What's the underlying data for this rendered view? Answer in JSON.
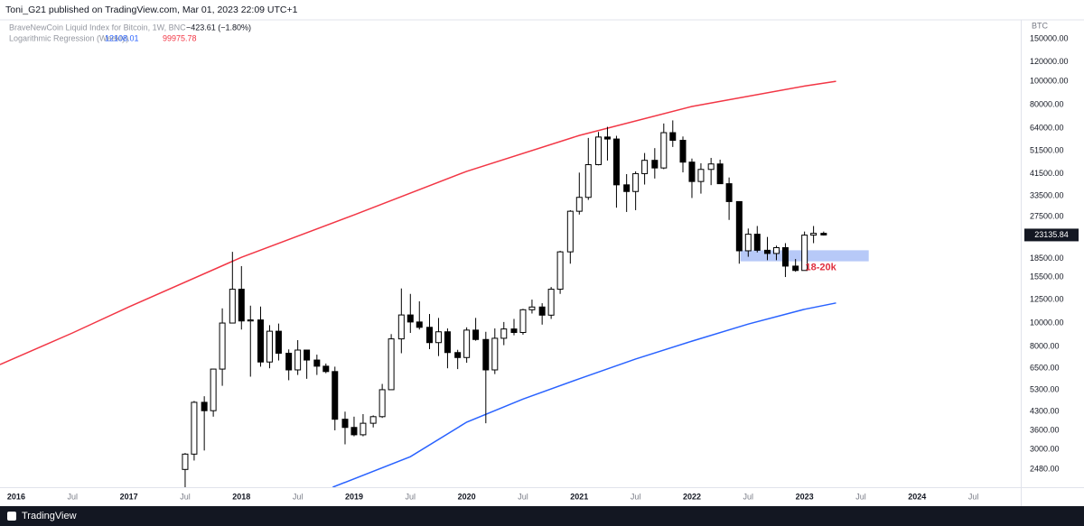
{
  "header": {
    "text": "Toni_G21 published on TradingView.com, Mar 01, 2023 22:09 UTC+1"
  },
  "footer": {
    "brand": "TradingView"
  },
  "chart_data": {
    "type": "candlestick",
    "log_scale": true,
    "grid": false,
    "ylabel": "BTC",
    "xlim": [
      2015.856,
      2024.92
    ],
    "ylim": [
      2094,
      179500
    ],
    "xticks": [
      2016,
      {
        "value": 2016.5,
        "label": "Jul"
      },
      2017,
      {
        "value": 2017.5,
        "label": "Jul"
      },
      2018,
      {
        "value": 2018.5,
        "label": "Jul"
      },
      2019,
      {
        "value": 2019.5,
        "label": "Jul"
      },
      2020,
      {
        "value": 2020.5,
        "label": "Jul"
      },
      2021,
      {
        "value": 2021.5,
        "label": "Jul"
      },
      2022,
      {
        "value": 2022.5,
        "label": "Jul"
      },
      2023,
      {
        "value": 2023.5,
        "label": "Jul"
      },
      2024,
      {
        "value": 2024.5,
        "label": "Jul"
      }
    ],
    "yticks": [
      {
        "value": 150000,
        "label": "150000.00"
      },
      {
        "value": 120000,
        "label": "120000.00"
      },
      {
        "value": 100000,
        "label": "100000.00"
      },
      {
        "value": 80000,
        "label": "80000.00"
      },
      {
        "value": 64000,
        "label": "64000.00"
      },
      {
        "value": 51500,
        "label": "51500.00"
      },
      {
        "value": 41500,
        "label": "41500.00"
      },
      {
        "value": 33500,
        "label": "33500.00"
      },
      {
        "value": 27500,
        "label": "27500.00"
      },
      {
        "value": 18500,
        "label": "18500.00"
      },
      {
        "value": 15500,
        "label": "15500.00"
      },
      {
        "value": 12500,
        "label": "12500.00"
      },
      {
        "value": 10000,
        "label": "10000.00"
      },
      {
        "value": 8000,
        "label": "8000.00"
      },
      {
        "value": 6500,
        "label": "6500.00"
      },
      {
        "value": 5300,
        "label": "5300.00"
      },
      {
        "value": 4300,
        "label": "4300.00"
      },
      {
        "value": 3600,
        "label": "3600.00"
      },
      {
        "value": 3000,
        "label": "3000.00"
      },
      {
        "value": 2480,
        "label": "2480.00"
      }
    ],
    "candles": {
      "name": "BraveNewCoin Liquid Index for Bitcoin, 1W, BNC",
      "change_label": "−423.61 (−1.80%)",
      "up_color": "#ffffff",
      "down_color": "#000000",
      "wick_color": "#000000",
      "x": [
        2017.5,
        2017.58,
        2017.67,
        2017.75,
        2017.83,
        2017.92,
        2018.0,
        2018.08,
        2018.17,
        2018.25,
        2018.33,
        2018.42,
        2018.5,
        2018.58,
        2018.67,
        2018.75,
        2018.83,
        2018.92,
        2019.0,
        2019.08,
        2019.17,
        2019.25,
        2019.33,
        2019.42,
        2019.5,
        2019.58,
        2019.67,
        2019.75,
        2019.83,
        2019.92,
        2020.0,
        2020.08,
        2020.17,
        2020.25,
        2020.33,
        2020.42,
        2020.5,
        2020.58,
        2020.67,
        2020.75,
        2020.83,
        2020.92,
        2021.0,
        2021.08,
        2021.17,
        2021.25,
        2021.33,
        2021.42,
        2021.5,
        2021.58,
        2021.67,
        2021.75,
        2021.83,
        2021.92,
        2022.0,
        2022.08,
        2022.17,
        2022.25,
        2022.33,
        2022.42,
        2022.5,
        2022.58,
        2022.67,
        2022.75,
        2022.83,
        2022.92,
        2023.0,
        2023.08,
        2023.17
      ],
      "open": [
        2480,
        2870,
        4700,
        4340,
        6450,
        10000,
        13800,
        10200,
        10300,
        6900,
        9250,
        7500,
        6400,
        7730,
        7030,
        6630,
        6300,
        4000,
        3700,
        3450,
        3850,
        4100,
        5300,
        8600,
        10800,
        10100,
        9600,
        8300,
        9200,
        7550,
        7200,
        9350,
        8550,
        6400,
        8650,
        9450,
        9140,
        11350,
        11650,
        10780,
        13800,
        19700,
        29000,
        33100,
        45200,
        58800,
        57700,
        37300,
        35000,
        41500,
        47100,
        43800,
        61300,
        57000,
        46300,
        38500,
        43200,
        45500,
        37700,
        31800,
        19900,
        23300,
        20000,
        19400,
        20500,
        17200,
        16500,
        23100,
        23500
      ],
      "high": [
        2900,
        4760,
        4980,
        6470,
        11500,
        19700,
        17200,
        11800,
        11700,
        9800,
        9950,
        7780,
        8500,
        7760,
        7400,
        6800,
        6600,
        4300,
        4100,
        4200,
        4150,
        5600,
        9000,
        13900,
        13200,
        12300,
        10900,
        10500,
        9500,
        7750,
        9600,
        10500,
        9200,
        9500,
        10100,
        10400,
        11450,
        12500,
        12080,
        14100,
        19900,
        29300,
        41900,
        58300,
        61700,
        64800,
        59500,
        41300,
        42400,
        50500,
        52900,
        66900,
        68900,
        59100,
        47900,
        45800,
        48200,
        47400,
        40000,
        31900,
        24600,
        25200,
        22700,
        20900,
        21400,
        18400,
        23900,
        25200,
        23900
      ],
      "low": [
        1840,
        2700,
        2970,
        4100,
        5500,
        10900,
        9400,
        6000,
        6600,
        6500,
        7000,
        5800,
        6100,
        5880,
        6100,
        6200,
        3600,
        3150,
        3400,
        3400,
        3700,
        4050,
        5300,
        7500,
        9100,
        9400,
        7800,
        7300,
        6500,
        6450,
        6850,
        8450,
        3850,
        6150,
        8100,
        8900,
        8950,
        10950,
        9850,
        10400,
        13200,
        17600,
        28100,
        32300,
        44900,
        47000,
        30000,
        28800,
        29300,
        37400,
        39600,
        43300,
        53500,
        42000,
        32900,
        34300,
        37200,
        37700,
        26700,
        17600,
        18800,
        19600,
        18200,
        18200,
        15500,
        16300,
        16500,
        21400,
        23000
      ],
      "close": [
        2870,
        4700,
        4340,
        6450,
        10000,
        13800,
        10200,
        10300,
        6900,
        9250,
        7500,
        6400,
        7730,
        7030,
        6630,
        6300,
        4000,
        3700,
        3450,
        3850,
        4100,
        5300,
        8600,
        10800,
        10100,
        9600,
        8300,
        9200,
        7550,
        7200,
        9350,
        8550,
        6400,
        8650,
        9450,
        9140,
        11350,
        11650,
        10780,
        13800,
        19700,
        29000,
        33100,
        45200,
        58800,
        57700,
        37300,
        35000,
        41500,
        47100,
        43800,
        61300,
        57000,
        46300,
        38500,
        43200,
        45500,
        37700,
        31800,
        19900,
        23300,
        20000,
        19400,
        20500,
        17200,
        16500,
        23100,
        23500,
        23135.84
      ]
    },
    "last_price": 23135.84,
    "indicator": {
      "name": "Logarithmic Regression (Weekly)",
      "lines": [
        {
          "color": "#2962ff",
          "x": [
            2018.81,
            2019.5,
            2020.0,
            2020.5,
            2021.0,
            2021.5,
            2022.0,
            2022.5,
            2023.0,
            2023.28
          ],
          "values": [
            2094,
            2800,
            3890,
            4850,
            5880,
            7100,
            8420,
            9900,
            11400,
            12108.01
          ]
        },
        {
          "color": "#f23645",
          "x": [
            2015.856,
            2016.5,
            2017.0,
            2018.0,
            2019.0,
            2020.0,
            2021.0,
            2022.0,
            2023.0,
            2023.28
          ],
          "values": [
            6730,
            9100,
            11660,
            18700,
            28000,
            42400,
            59700,
            78700,
            95500,
            99975.78
          ]
        }
      ]
    },
    "annotation": {
      "text": "18-20k",
      "low": 18000,
      "high": 20000,
      "x_start": 2022.43,
      "x_end": 2023.57,
      "color": "#b7c9f8",
      "text_color": "#e0303f"
    }
  }
}
